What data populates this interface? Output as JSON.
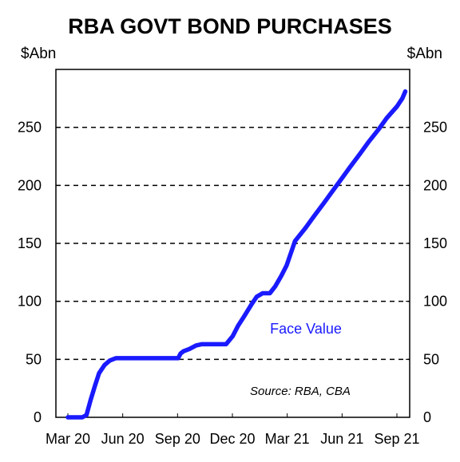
{
  "chart_data": {
    "type": "line",
    "title": "RBA GOVT BOND PURCHASES",
    "ylabel_left": "$Abn",
    "ylabel_right": "$Abn",
    "y_ticks": [
      "0",
      "50",
      "100",
      "150",
      "200",
      "250"
    ],
    "ylim": [
      0,
      300
    ],
    "x_ticks": [
      "Mar 20",
      "Jun 20",
      "Sep 20",
      "Dec 20",
      "Mar 21",
      "Jun 21",
      "Sep 21"
    ],
    "xlim": [
      "2020-03",
      "2021-09"
    ],
    "grid": "horizontal dashed",
    "series": [
      {
        "name": "Face Value",
        "color": "#1a1aff",
        "x": [
          "2020-03-01",
          "2020-03-15",
          "2020-03-20",
          "2020-03-25",
          "2020-04-01",
          "2020-04-08",
          "2020-04-15",
          "2020-04-22",
          "2020-05-01",
          "2020-05-10",
          "2020-05-20",
          "2020-06-01",
          "2020-06-15",
          "2020-07-01",
          "2020-07-15",
          "2020-08-01",
          "2020-08-15",
          "2020-08-25",
          "2020-09-01",
          "2020-09-05",
          "2020-09-10",
          "2020-09-20",
          "2020-10-01",
          "2020-10-10",
          "2020-10-20",
          "2020-11-01",
          "2020-11-10",
          "2020-11-20",
          "2020-12-01",
          "2020-12-10",
          "2020-12-20",
          "2021-01-01",
          "2021-01-10",
          "2021-01-20",
          "2021-02-01",
          "2021-02-10",
          "2021-02-20",
          "2021-03-01",
          "2021-03-15",
          "2021-04-01",
          "2021-04-15",
          "2021-05-01",
          "2021-05-15",
          "2021-06-01",
          "2021-06-15",
          "2021-07-01",
          "2021-07-15",
          "2021-08-01",
          "2021-08-15",
          "2021-09-01",
          "2021-09-10",
          "2021-09-15"
        ],
        "values": [
          0,
          0,
          0,
          0,
          2,
          15,
          27,
          38,
          45,
          49,
          51,
          51,
          51,
          51,
          51,
          51,
          51,
          51,
          51,
          55,
          57,
          59,
          62,
          63,
          63,
          63,
          63,
          63,
          70,
          79,
          87,
          97,
          104,
          107,
          107,
          113,
          122,
          131,
          152,
          163,
          173,
          184,
          194,
          206,
          216,
          227,
          237,
          248,
          258,
          268,
          275,
          281
        ]
      }
    ],
    "source": "Source: RBA, CBA"
  }
}
